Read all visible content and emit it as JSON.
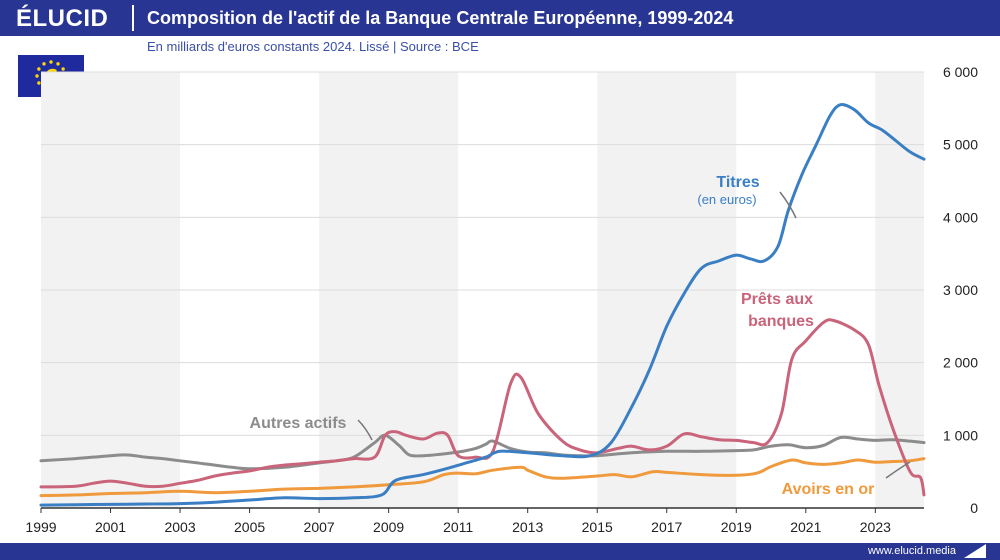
{
  "header": {
    "logo": "ÉLUCID",
    "title": "Composition de l'actif de la Banque Centrale Européenne, 1999-2024",
    "subtitle": "En milliards d'euros constants 2024. Lissé  |  Source : BCE"
  },
  "footer": {
    "url": "www.elucid.media"
  },
  "colors": {
    "brand": "#283593",
    "titres": "#3a7ec4",
    "prets": "#c9647a",
    "autres": "#8c8c8c",
    "or": "#ef9a3c",
    "band": "#f2f2f2"
  },
  "chart_data": {
    "type": "line",
    "x_ticks": [
      "1999",
      "2001",
      "2003",
      "2005",
      "2007",
      "2009",
      "2011",
      "2013",
      "2015",
      "2017",
      "2019",
      "2021",
      "2023"
    ],
    "y_ticks": [
      "0",
      "1 000",
      "2 000",
      "3 000",
      "4 000",
      "5 000",
      "6 000"
    ],
    "xlim": [
      1999,
      2024.4
    ],
    "ylim": [
      0,
      6000
    ],
    "y_axis_side": "right",
    "alternating_bands": true,
    "series": [
      {
        "name": "Titres",
        "label": "Titres",
        "sublabel": "(en euros)",
        "color": "#3a7ec4",
        "points": [
          [
            1999,
            40
          ],
          [
            2000,
            45
          ],
          [
            2001,
            50
          ],
          [
            2002,
            55
          ],
          [
            2003,
            60
          ],
          [
            2004,
            80
          ],
          [
            2005,
            110
          ],
          [
            2006,
            140
          ],
          [
            2007,
            130
          ],
          [
            2008,
            140
          ],
          [
            2008.8,
            180
          ],
          [
            2009.2,
            380
          ],
          [
            2010,
            460
          ],
          [
            2010.8,
            560
          ],
          [
            2011.3,
            630
          ],
          [
            2011.8,
            700
          ],
          [
            2012.2,
            780
          ],
          [
            2013,
            760
          ],
          [
            2014,
            720
          ],
          [
            2014.8,
            720
          ],
          [
            2015.4,
            900
          ],
          [
            2016,
            1400
          ],
          [
            2016.5,
            1900
          ],
          [
            2017,
            2500
          ],
          [
            2017.5,
            2950
          ],
          [
            2018,
            3300
          ],
          [
            2018.5,
            3400
          ],
          [
            2019,
            3480
          ],
          [
            2019.4,
            3430
          ],
          [
            2019.8,
            3400
          ],
          [
            2020.2,
            3600
          ],
          [
            2020.5,
            4100
          ],
          [
            2020.9,
            4600
          ],
          [
            2021.3,
            5000
          ],
          [
            2021.7,
            5400
          ],
          [
            2022,
            5550
          ],
          [
            2022.4,
            5480
          ],
          [
            2022.8,
            5300
          ],
          [
            2023.2,
            5200
          ],
          [
            2023.6,
            5050
          ],
          [
            2024,
            4900
          ],
          [
            2024.4,
            4800
          ]
        ]
      },
      {
        "name": "Prêts aux banques",
        "label_lines": [
          "Prêts aux",
          "banques"
        ],
        "color": "#c9647a",
        "points": [
          [
            1999,
            290
          ],
          [
            2000,
            300
          ],
          [
            2000.5,
            340
          ],
          [
            2001,
            370
          ],
          [
            2001.5,
            340
          ],
          [
            2002,
            300
          ],
          [
            2002.5,
            300
          ],
          [
            2003,
            340
          ],
          [
            2003.5,
            380
          ],
          [
            2004,
            440
          ],
          [
            2004.5,
            480
          ],
          [
            2005,
            510
          ],
          [
            2005.5,
            560
          ],
          [
            2006,
            590
          ],
          [
            2006.5,
            610
          ],
          [
            2007,
            630
          ],
          [
            2007.5,
            650
          ],
          [
            2008,
            680
          ],
          [
            2008.6,
            700
          ],
          [
            2008.9,
            1000
          ],
          [
            2009.2,
            1050
          ],
          [
            2009.5,
            1000
          ],
          [
            2010,
            950
          ],
          [
            2010.4,
            1030
          ],
          [
            2010.7,
            1000
          ],
          [
            2011,
            720
          ],
          [
            2011.5,
            700
          ],
          [
            2012,
            780
          ],
          [
            2012.5,
            1700
          ],
          [
            2012.8,
            1800
          ],
          [
            2013.3,
            1300
          ],
          [
            2014,
            920
          ],
          [
            2014.5,
            800
          ],
          [
            2015,
            760
          ],
          [
            2015.6,
            820
          ],
          [
            2016,
            850
          ],
          [
            2016.5,
            800
          ],
          [
            2017,
            850
          ],
          [
            2017.5,
            1020
          ],
          [
            2018,
            980
          ],
          [
            2018.5,
            940
          ],
          [
            2019,
            930
          ],
          [
            2019.5,
            900
          ],
          [
            2019.9,
            900
          ],
          [
            2020.3,
            1300
          ],
          [
            2020.6,
            2050
          ],
          [
            2021,
            2300
          ],
          [
            2021.5,
            2550
          ],
          [
            2021.8,
            2580
          ],
          [
            2022.4,
            2450
          ],
          [
            2022.8,
            2250
          ],
          [
            2023.1,
            1700
          ],
          [
            2023.5,
            1100
          ],
          [
            2024,
            500
          ],
          [
            2024.3,
            420
          ],
          [
            2024.4,
            180
          ]
        ]
      },
      {
        "name": "Autres actifs",
        "label": "Autres actifs",
        "color": "#8c8c8c",
        "points": [
          [
            1999,
            650
          ],
          [
            2000,
            680
          ],
          [
            2001,
            720
          ],
          [
            2001.5,
            730
          ],
          [
            2002,
            700
          ],
          [
            2002.5,
            680
          ],
          [
            2003,
            650
          ],
          [
            2003.5,
            620
          ],
          [
            2004,
            590
          ],
          [
            2004.5,
            560
          ],
          [
            2005,
            540
          ],
          [
            2006,
            560
          ],
          [
            2007,
            620
          ],
          [
            2007.5,
            650
          ],
          [
            2008,
            700
          ],
          [
            2008.6,
            900
          ],
          [
            2008.9,
            1000
          ],
          [
            2009.3,
            860
          ],
          [
            2009.6,
            730
          ],
          [
            2010,
            720
          ],
          [
            2010.5,
            740
          ],
          [
            2011,
            770
          ],
          [
            2011.5,
            820
          ],
          [
            2011.8,
            880
          ],
          [
            2012,
            920
          ],
          [
            2012.5,
            820
          ],
          [
            2013,
            770
          ],
          [
            2013.5,
            760
          ],
          [
            2014,
            730
          ],
          [
            2014.5,
            720
          ],
          [
            2015,
            720
          ],
          [
            2016,
            760
          ],
          [
            2017,
            780
          ],
          [
            2018,
            780
          ],
          [
            2019,
            790
          ],
          [
            2019.5,
            800
          ],
          [
            2020,
            850
          ],
          [
            2020.5,
            870
          ],
          [
            2021,
            830
          ],
          [
            2021.5,
            860
          ],
          [
            2022,
            970
          ],
          [
            2022.5,
            950
          ],
          [
            2023,
            930
          ],
          [
            2023.5,
            940
          ],
          [
            2024,
            920
          ],
          [
            2024.4,
            900
          ]
        ]
      },
      {
        "name": "Avoirs en or",
        "label": "Avoirs en or",
        "color": "#ef9a3c",
        "points": [
          [
            1999,
            170
          ],
          [
            2000,
            180
          ],
          [
            2001,
            200
          ],
          [
            2002,
            210
          ],
          [
            2003,
            230
          ],
          [
            2004,
            210
          ],
          [
            2005,
            230
          ],
          [
            2006,
            260
          ],
          [
            2007,
            270
          ],
          [
            2008,
            290
          ],
          [
            2009,
            320
          ],
          [
            2010,
            360
          ],
          [
            2010.6,
            460
          ],
          [
            2011,
            480
          ],
          [
            2011.5,
            470
          ],
          [
            2012,
            520
          ],
          [
            2012.8,
            560
          ],
          [
            2013,
            520
          ],
          [
            2013.5,
            430
          ],
          [
            2014,
            410
          ],
          [
            2015,
            440
          ],
          [
            2015.5,
            460
          ],
          [
            2016,
            430
          ],
          [
            2016.6,
            500
          ],
          [
            2017,
            490
          ],
          [
            2018,
            460
          ],
          [
            2019,
            450
          ],
          [
            2019.6,
            480
          ],
          [
            2020,
            570
          ],
          [
            2020.6,
            660
          ],
          [
            2021,
            620
          ],
          [
            2021.5,
            600
          ],
          [
            2022,
            620
          ],
          [
            2022.5,
            660
          ],
          [
            2023,
            630
          ],
          [
            2023.5,
            640
          ],
          [
            2024,
            650
          ],
          [
            2024.4,
            680
          ]
        ]
      }
    ]
  }
}
